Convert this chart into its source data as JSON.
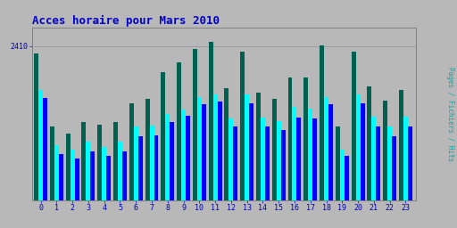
{
  "title": "Acces horaire pour Mars 2010",
  "hours": [
    0,
    1,
    2,
    3,
    4,
    5,
    6,
    7,
    8,
    9,
    10,
    11,
    12,
    13,
    14,
    15,
    16,
    17,
    18,
    19,
    20,
    21,
    22,
    23
  ],
  "hits": [
    2300,
    1150,
    1050,
    1220,
    1180,
    1220,
    1520,
    1580,
    2000,
    2150,
    2360,
    2480,
    1750,
    2320,
    1680,
    1580,
    1920,
    1920,
    2420,
    1150,
    2320,
    1780,
    1560,
    1720
  ],
  "pages": [
    1720,
    870,
    800,
    920,
    840,
    920,
    1150,
    1170,
    1350,
    1420,
    1620,
    1650,
    1280,
    1650,
    1300,
    1240,
    1460,
    1430,
    1620,
    800,
    1650,
    1310,
    1150,
    1310
  ],
  "files": [
    1600,
    720,
    650,
    770,
    700,
    770,
    1000,
    1020,
    1220,
    1320,
    1500,
    1550,
    1150,
    1520,
    1150,
    1100,
    1300,
    1280,
    1500,
    700,
    1520,
    1150,
    1000,
    1150
  ],
  "color_hits": "#006050",
  "color_pages": "#00ffff",
  "color_files": "#0000ff",
  "background_plot": "#b8b8b8",
  "background_fig": "#b8b8b8",
  "text_color": "#0000bb",
  "title_color": "#0000cc",
  "ylabel": "Pages / Fichiers / Hits",
  "ylim": [
    0,
    2700
  ],
  "ytick_val": 2410,
  "bar_width": 0.28
}
